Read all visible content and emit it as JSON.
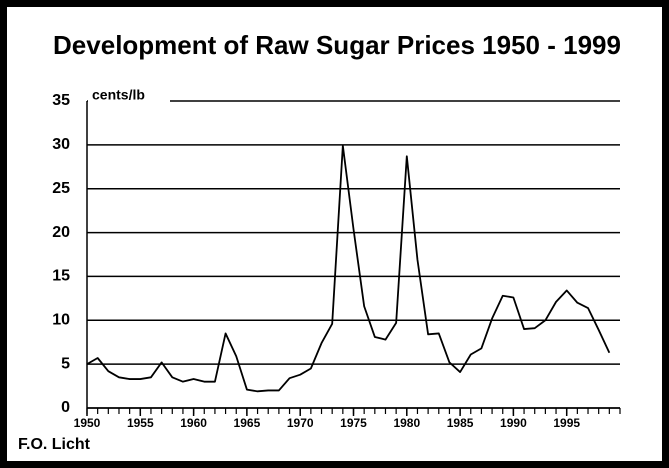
{
  "chart_data": {
    "type": "line",
    "title": "Development of Raw Sugar Prices 1950 - 1999",
    "y_label": "cents/lb",
    "source": "F.O. Licht",
    "x": [
      1950,
      1951,
      1952,
      1953,
      1954,
      1955,
      1956,
      1957,
      1958,
      1959,
      1960,
      1961,
      1962,
      1963,
      1964,
      1965,
      1966,
      1967,
      1968,
      1969,
      1970,
      1971,
      1972,
      1973,
      1974,
      1975,
      1976,
      1977,
      1978,
      1979,
      1980,
      1981,
      1982,
      1983,
      1984,
      1985,
      1986,
      1987,
      1988,
      1989,
      1990,
      1991,
      1992,
      1993,
      1994,
      1995,
      1996,
      1997,
      1998,
      1999
    ],
    "series": [
      {
        "name": "Raw sugar price",
        "color": "#000000",
        "values": [
          5.0,
          5.7,
          4.2,
          3.5,
          3.3,
          3.3,
          3.5,
          5.2,
          3.5,
          3.0,
          3.3,
          3.0,
          3.0,
          8.5,
          5.9,
          2.1,
          1.9,
          2.0,
          2.0,
          3.4,
          3.8,
          4.5,
          7.4,
          9.6,
          29.9,
          20.4,
          11.6,
          8.1,
          7.8,
          9.7,
          28.7,
          16.9,
          8.4,
          8.5,
          5.2,
          4.1,
          6.1,
          6.8,
          10.2,
          12.8,
          12.6,
          9.0,
          9.1,
          10.0,
          12.1,
          13.4,
          12.0,
          11.4,
          8.9,
          6.3
        ]
      }
    ],
    "xlim": [
      1950,
      2000
    ],
    "xticks": [
      1950,
      1955,
      1960,
      1965,
      1970,
      1975,
      1980,
      1985,
      1990,
      1995
    ],
    "ylim": [
      0,
      35
    ],
    "yticks": [
      0,
      5,
      10,
      15,
      20,
      25,
      30,
      35
    ],
    "grid": true
  }
}
